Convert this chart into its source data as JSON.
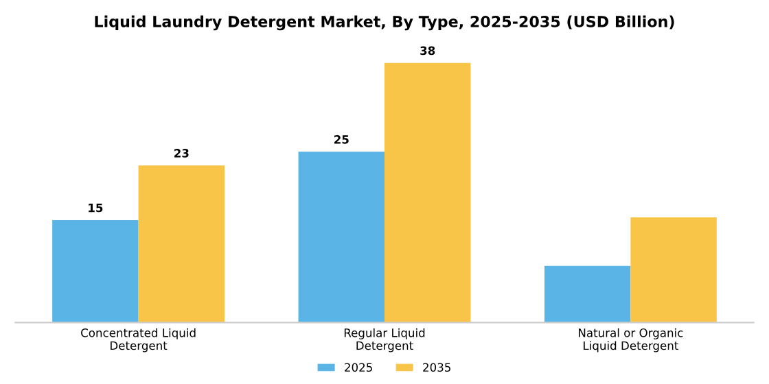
{
  "chart_data": {
    "type": "bar",
    "title": "Liquid Laundry Detergent Market, By Type, 2025-2035 (USD Billion)",
    "categories": [
      "Concentrated Liquid\nDetergent",
      "Regular Liquid\nDetergent",
      "Natural or Organic\nLiquid Detergent"
    ],
    "series": [
      {
        "name": "2025",
        "color": "#5ab4e5",
        "values": [
          15,
          25,
          8.3
        ],
        "value_labels": [
          "15",
          "25",
          null
        ]
      },
      {
        "name": "2035",
        "color": "#f9c548",
        "values": [
          23,
          38,
          15.4
        ],
        "value_labels": [
          "23",
          "38",
          null
        ]
      }
    ],
    "legend": "bottom",
    "grid": false
  }
}
